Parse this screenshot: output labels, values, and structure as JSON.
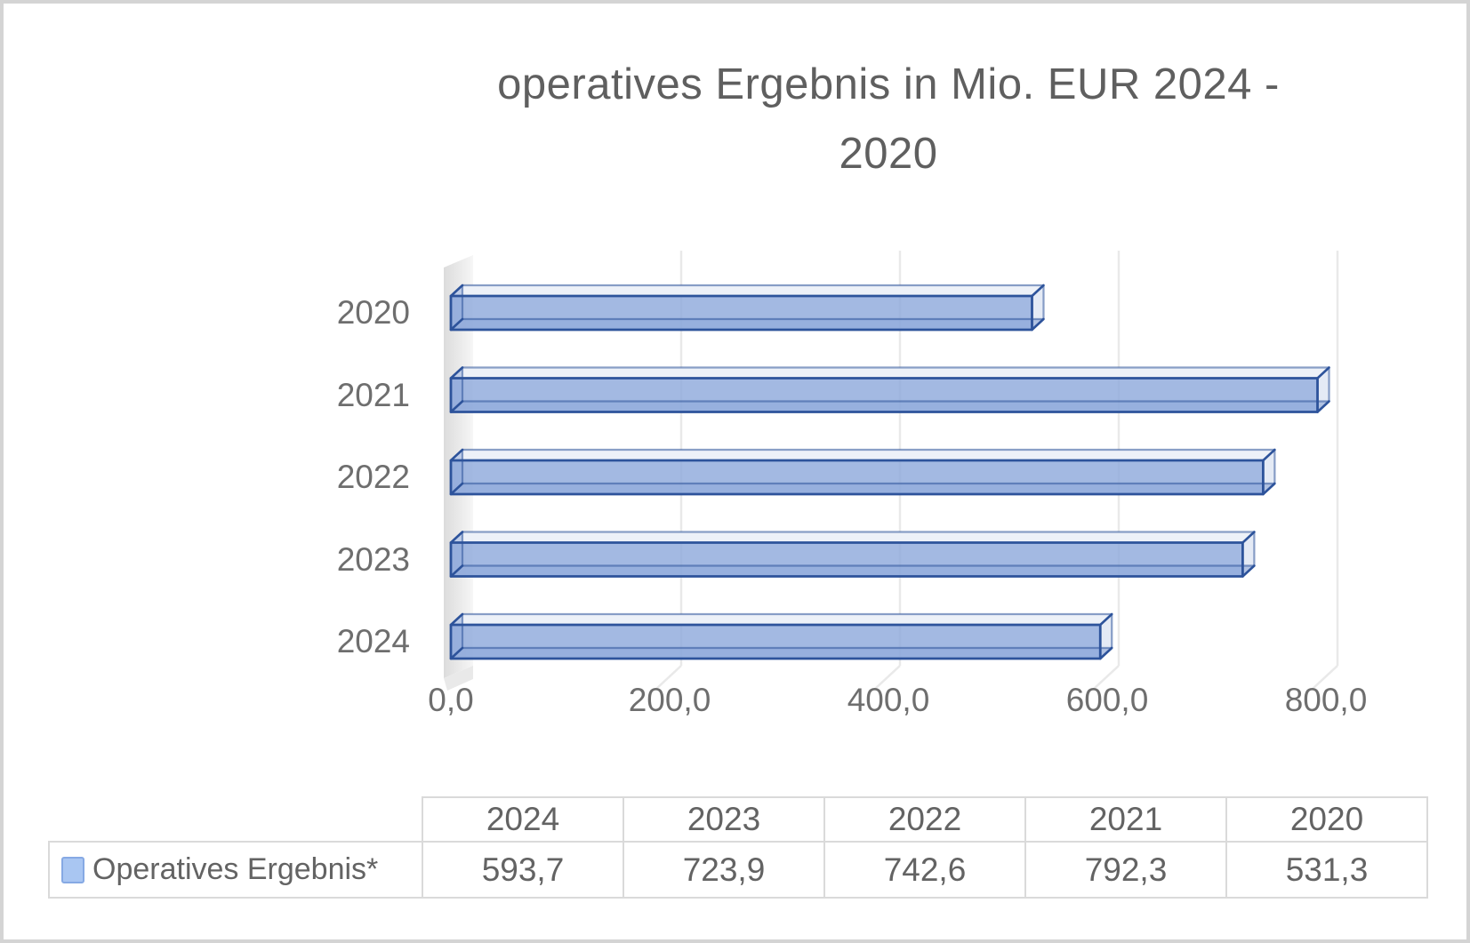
{
  "frame": {
    "background": "#ffffff",
    "border_color": "#d4d4d4"
  },
  "title": {
    "full": "operatives Ergebnis in Mio. EUR 2024 - 2020",
    "line1": "operatives Ergebnis in Mio. EUR 2024 -",
    "line2": "2020",
    "color": "#5f5f5f"
  },
  "chart_data": {
    "type": "bar",
    "orientation": "horizontal",
    "style": "3d",
    "title": "operatives Ergebnis in Mio. EUR 2024 - 2020",
    "categories": [
      "2020",
      "2021",
      "2022",
      "2023",
      "2024"
    ],
    "series": [
      {
        "name": "Operatives Ergebnis*",
        "values": [
          531.3,
          792.3,
          742.6,
          723.9,
          593.7
        ]
      }
    ],
    "value_labels": [
      "531,3",
      "792,3",
      "742,6",
      "723,9",
      "593,7"
    ],
    "xlabel": "",
    "ylabel": "",
    "x_axis": {
      "min": 0,
      "max": 800,
      "tick_interval": 200,
      "tick_labels": [
        "0,0",
        "200,0",
        "400,0",
        "600,0",
        "800,0"
      ],
      "tick_values": [
        0,
        200,
        400,
        600,
        800
      ]
    },
    "grid": true,
    "legend_position": "bottom-table",
    "bar_fill": "#8fa9dc",
    "bar_top_face": "#edf1f8",
    "bar_end_face": "#e4eaf5",
    "bar_edge": "#2d539b",
    "grid_color": "#e9e9e9",
    "wall_color_dark": "#dcdcdc",
    "wall_color_light": "#f6f6f6",
    "axis_label_color": "#6e6e6e"
  },
  "data_table": {
    "columns": [
      "2024",
      "2023",
      "2022",
      "2021",
      "2020"
    ],
    "rows": [
      {
        "label": "Operatives Ergebnis*",
        "values": [
          "593,7",
          "723,9",
          "742,6",
          "792,3",
          "531,3"
        ],
        "swatch_fill": "#a9c6f2",
        "swatch_border": "#86a9e4"
      }
    ],
    "border_color": "#dadada",
    "text_color": "#636363"
  }
}
